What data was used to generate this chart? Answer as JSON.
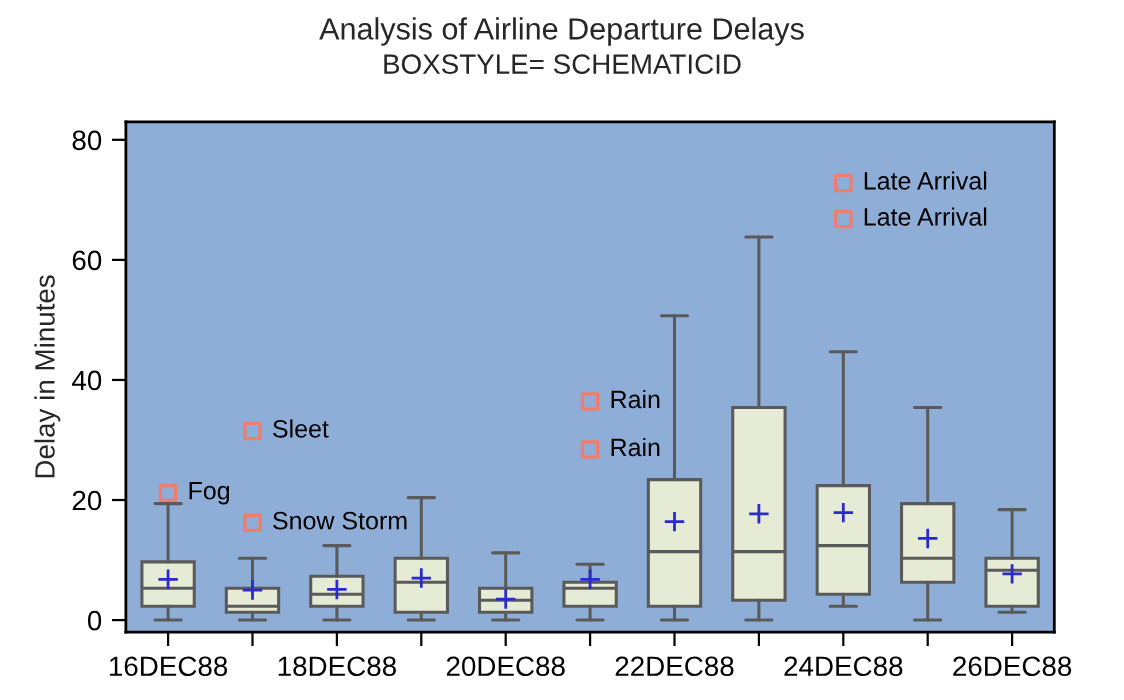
{
  "chart_data": {
    "type": "box",
    "title": "Analysis of Airline Departure Delays",
    "subtitle": "BOXSTYLE= SCHEMATICID",
    "ylabel": "Delay in Minutes",
    "categories": [
      "16DEC88",
      null,
      "18DEC88",
      null,
      "20DEC88",
      null,
      "22DEC88",
      null,
      "24DEC88",
      null,
      "26DEC88"
    ],
    "ylim": [
      -2,
      83
    ],
    "yticks": [
      0,
      20,
      40,
      60,
      80
    ],
    "grid": false,
    "marker": "cross",
    "boxes": [
      {
        "low": 0,
        "q1": 2.3,
        "median": 5.3,
        "q3": 9.7,
        "high": 19.4,
        "mean": 6.8,
        "outliers": [
          21.2
        ]
      },
      {
        "low": 0,
        "q1": 1.3,
        "median": 2.3,
        "q3": 5.3,
        "high": 10.3,
        "mean": 5.0,
        "outliers": [
          31.5,
          16.2
        ]
      },
      {
        "low": 0,
        "q1": 2.3,
        "median": 4.3,
        "q3": 7.3,
        "high": 12.4,
        "mean": 5.1
      },
      {
        "low": 0,
        "q1": 1.3,
        "median": 6.3,
        "q3": 10.3,
        "high": 20.4,
        "mean": 7.0
      },
      {
        "low": 0,
        "q1": 1.3,
        "median": 3.3,
        "q3": 5.3,
        "high": 11.2,
        "mean": 3.5
      },
      {
        "low": 0,
        "q1": 2.3,
        "median": 5.3,
        "q3": 6.3,
        "high": 9.3,
        "mean": 6.8,
        "outliers": [
          36.4,
          28.4
        ]
      },
      {
        "low": 0,
        "q1": 2.3,
        "median": 11.4,
        "q3": 23.4,
        "high": 50.7,
        "mean": 16.4
      },
      {
        "low": 0,
        "q1": 3.3,
        "median": 11.4,
        "q3": 35.4,
        "high": 63.8,
        "mean": 17.7
      },
      {
        "low": 2.3,
        "q1": 4.3,
        "median": 12.4,
        "q3": 22.4,
        "high": 44.7,
        "mean": 17.9,
        "outliers": [
          72.8,
          66.8
        ]
      },
      {
        "low": 0,
        "q1": 6.3,
        "median": 10.3,
        "q3": 19.4,
        "high": 35.4,
        "mean": 13.6
      },
      {
        "low": 1.3,
        "q1": 2.3,
        "median": 8.3,
        "q3": 10.3,
        "high": 18.4,
        "mean": 7.7
      }
    ],
    "annotations": [
      "Fog",
      "Sleet",
      "Snow Storm",
      "Rain",
      "Rain",
      "Late Arrival",
      "Late Arrival"
    ]
  }
}
